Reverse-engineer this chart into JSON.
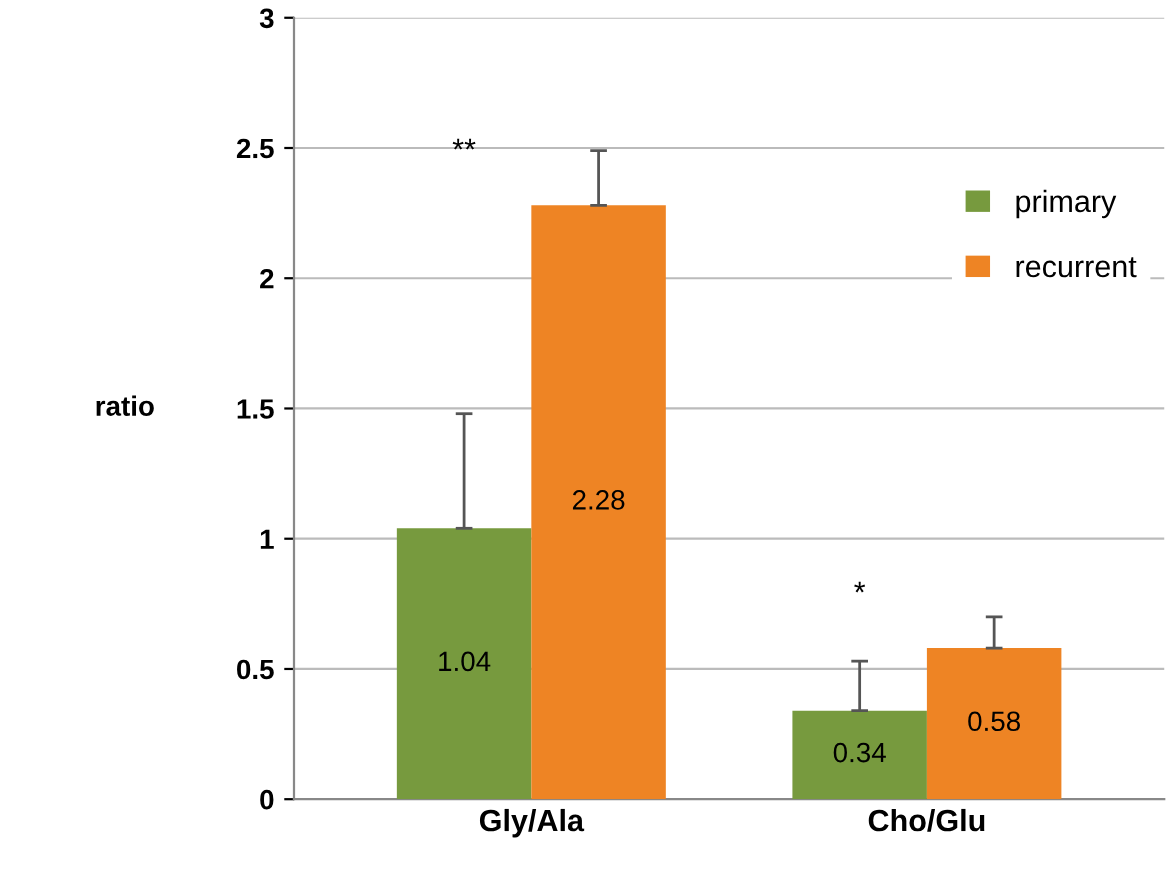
{
  "chart_data": {
    "type": "bar",
    "ylabel": "ratio",
    "categories": [
      "Gly/Ala",
      "Cho/Glu"
    ],
    "series": [
      {
        "name": "primary",
        "color": "#779a3e",
        "values": [
          1.04,
          0.34
        ],
        "errors": [
          [
            1.04,
            1.48
          ],
          [
            0.34,
            0.53
          ]
        ]
      },
      {
        "name": "recurrent",
        "color": "#ee8424",
        "values": [
          2.28,
          0.58
        ],
        "errors": [
          [
            2.28,
            2.49
          ],
          [
            0.58,
            0.7
          ]
        ]
      }
    ],
    "ylim": [
      0,
      3
    ],
    "yticks": [
      0,
      0.5,
      1,
      1.5,
      2,
      2.5,
      3
    ],
    "grid": "y",
    "legend": "right",
    "data_labels": true,
    "annotations": [
      "**",
      "*"
    ]
  }
}
